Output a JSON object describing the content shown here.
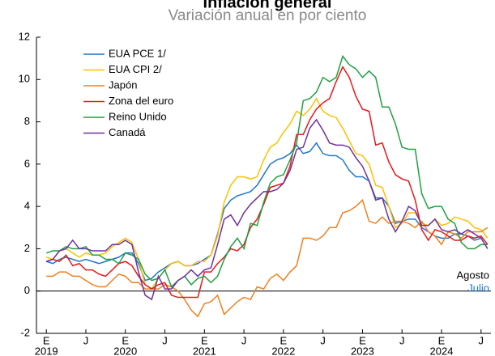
{
  "chart_data": {
    "type": "line",
    "title": "Inflación general",
    "subtitle": "Variación anual en por ciento",
    "x": [
      0,
      1,
      2,
      3,
      4,
      5,
      6,
      7,
      8,
      9,
      10,
      11,
      12,
      13,
      14,
      15,
      16,
      17,
      18,
      19,
      20,
      21,
      22,
      23,
      24,
      25,
      26,
      27,
      28,
      29,
      30,
      31,
      32,
      33,
      34,
      35,
      36,
      37,
      38,
      39,
      40,
      41,
      42,
      43,
      44,
      45,
      46,
      47,
      48,
      49,
      50,
      51,
      52,
      53,
      54,
      55,
      56,
      57,
      58,
      59,
      60,
      61,
      62,
      63,
      64,
      65,
      66,
      67
    ],
    "xlim": [
      -1.5,
      67.5
    ],
    "xticks": [
      {
        "value": 0,
        "label": "E"
      },
      {
        "value": 6,
        "label": "J"
      },
      {
        "value": 12,
        "label": "E"
      },
      {
        "value": 18,
        "label": "J"
      },
      {
        "value": 24,
        "label": "E"
      },
      {
        "value": 30,
        "label": "J"
      },
      {
        "value": 36,
        "label": "E"
      },
      {
        "value": 42,
        "label": "J"
      },
      {
        "value": 48,
        "label": "E"
      },
      {
        "value": 54,
        "label": "J"
      },
      {
        "value": 60,
        "label": "E"
      },
      {
        "value": 66,
        "label": "J"
      }
    ],
    "xtick_years": [
      {
        "value": 0,
        "label": "2019"
      },
      {
        "value": 12,
        "label": "2020"
      },
      {
        "value": 24,
        "label": "2021"
      },
      {
        "value": 36,
        "label": "2022"
      },
      {
        "value": 48,
        "label": "2023"
      },
      {
        "value": 60,
        "label": "2024"
      }
    ],
    "ylim": [
      -2,
      12
    ],
    "yticks": [
      -2,
      0,
      2,
      4,
      6,
      8,
      10,
      12
    ],
    "grid": false,
    "legend": "upper left",
    "series": [
      {
        "name": "EUA PCE 1/",
        "color": "#1f77c8",
        "values": [
          1.4,
          1.3,
          1.5,
          1.6,
          1.5,
          1.4,
          1.5,
          1.4,
          1.3,
          1.4,
          1.5,
          1.6,
          1.8,
          1.8,
          1.3,
          0.5,
          0.6,
          0.9,
          1.1,
          1.3,
          1.4,
          1.2,
          1.2,
          1.3,
          1.5,
          1.7,
          2.7,
          3.9,
          4.3,
          4.5,
          4.6,
          4.7,
          5.0,
          5.5,
          6.0,
          6.2,
          6.3,
          6.5,
          6.9,
          6.5,
          6.6,
          7.0,
          6.5,
          6.4,
          6.4,
          6.2,
          5.7,
          5.4,
          5.4,
          5.2,
          4.4,
          4.4,
          4.0,
          3.2,
          3.3,
          3.4,
          3.4,
          3.0,
          2.8,
          2.6,
          2.5,
          2.5,
          2.7,
          2.7,
          2.6,
          2.4,
          2.5,
          null
        ]
      },
      {
        "name": "EUA CPI 2/",
        "color": "#ffc000",
        "values": [
          1.6,
          1.5,
          1.9,
          2.0,
          1.8,
          1.6,
          1.8,
          1.7,
          1.7,
          1.8,
          2.1,
          2.3,
          2.5,
          2.3,
          1.5,
          0.3,
          0.1,
          0.6,
          1.0,
          1.3,
          1.4,
          1.2,
          1.2,
          1.4,
          1.4,
          1.7,
          2.6,
          4.2,
          5.0,
          5.4,
          5.4,
          5.3,
          5.4,
          6.2,
          6.8,
          7.0,
          7.5,
          7.9,
          8.5,
          8.3,
          8.6,
          9.1,
          8.5,
          8.3,
          8.2,
          7.7,
          7.1,
          6.5,
          6.4,
          6.0,
          5.0,
          4.9,
          4.0,
          3.0,
          3.2,
          3.7,
          3.7,
          3.2,
          3.1,
          3.4,
          3.1,
          3.2,
          3.5,
          3.4,
          3.3,
          3.0,
          2.9,
          2.5
        ]
      },
      {
        "name": "Japón",
        "color": "#f08020",
        "values": [
          0.7,
          0.7,
          0.9,
          0.9,
          0.7,
          0.7,
          0.5,
          0.3,
          0.2,
          0.2,
          0.5,
          0.8,
          0.7,
          0.4,
          0.4,
          0.1,
          0.1,
          0.1,
          0.3,
          0.2,
          0.0,
          -0.4,
          -0.9,
          -1.2,
          -0.6,
          -0.5,
          -0.2,
          -1.1,
          -0.8,
          -0.5,
          -0.3,
          -0.4,
          0.2,
          0.1,
          0.6,
          0.8,
          0.5,
          0.9,
          1.2,
          2.5,
          2.5,
          2.4,
          2.6,
          3.0,
          3.0,
          3.7,
          3.8,
          4.0,
          4.3,
          3.3,
          3.2,
          3.5,
          3.2,
          3.3,
          3.3,
          3.2,
          3.0,
          3.3,
          2.8,
          2.6,
          2.2,
          2.8,
          2.7,
          2.5,
          2.8,
          2.8,
          2.8,
          3.0
        ]
      },
      {
        "name": "Zona del euro",
        "color": "#e81818",
        "values": [
          1.4,
          1.5,
          1.4,
          1.7,
          1.2,
          1.3,
          1.0,
          1.0,
          0.8,
          0.7,
          1.0,
          1.3,
          1.4,
          1.2,
          0.7,
          0.3,
          0.1,
          0.3,
          0.4,
          -0.2,
          -0.3,
          -0.3,
          -0.3,
          -0.3,
          0.9,
          0.9,
          1.3,
          1.6,
          2.0,
          1.9,
          2.2,
          3.0,
          3.4,
          4.1,
          4.9,
          5.0,
          5.1,
          5.9,
          7.4,
          7.4,
          8.1,
          8.6,
          8.9,
          9.1,
          9.9,
          10.6,
          10.1,
          9.2,
          8.6,
          8.5,
          6.9,
          7.0,
          6.1,
          5.5,
          5.3,
          5.2,
          4.3,
          2.9,
          2.4,
          2.9,
          2.8,
          2.6,
          2.4,
          2.4,
          2.6,
          2.5,
          2.6,
          2.2
        ]
      },
      {
        "name": "Reino Unido",
        "color": "#20a040",
        "values": [
          1.8,
          1.9,
          1.9,
          2.1,
          2.0,
          2.0,
          2.1,
          1.7,
          1.7,
          1.5,
          1.5,
          1.3,
          1.8,
          1.7,
          1.5,
          0.8,
          0.5,
          0.6,
          1.0,
          0.2,
          0.5,
          0.7,
          0.3,
          0.6,
          0.7,
          0.4,
          0.7,
          1.5,
          2.1,
          2.5,
          2.0,
          3.2,
          3.1,
          4.2,
          5.1,
          5.4,
          5.5,
          6.2,
          7.0,
          9.0,
          9.1,
          9.4,
          10.1,
          9.9,
          10.1,
          11.1,
          10.7,
          10.5,
          10.1,
          10.4,
          10.1,
          8.7,
          8.7,
          7.9,
          6.8,
          6.7,
          6.7,
          4.6,
          3.9,
          4.0,
          4.0,
          3.4,
          3.2,
          2.3,
          2.0,
          2.0,
          2.2,
          2.2
        ]
      },
      {
        "name": "Canadá",
        "color": "#7030a0",
        "values": [
          1.4,
          1.5,
          1.9,
          2.0,
          2.4,
          2.0,
          2.0,
          1.9,
          1.9,
          1.9,
          2.2,
          2.2,
          2.4,
          2.2,
          0.9,
          -0.2,
          -0.4,
          0.7,
          0.1,
          0.1,
          0.5,
          0.7,
          1.0,
          0.7,
          1.0,
          1.1,
          2.2,
          3.4,
          3.6,
          3.1,
          3.7,
          4.1,
          4.4,
          4.7,
          4.7,
          4.8,
          5.1,
          5.7,
          6.7,
          6.8,
          7.7,
          8.1,
          7.6,
          7.0,
          6.9,
          6.9,
          6.8,
          6.3,
          5.9,
          5.2,
          4.3,
          4.4,
          3.4,
          2.8,
          3.3,
          4.0,
          3.8,
          3.1,
          3.1,
          3.4,
          2.9,
          2.8,
          2.9,
          2.7,
          2.9,
          2.7,
          2.5,
          2.0
        ]
      }
    ],
    "annotations": [
      {
        "text": "Agosto",
        "color": "#000000"
      },
      {
        "text": "Julio",
        "color": "#1f77c8"
      }
    ]
  }
}
